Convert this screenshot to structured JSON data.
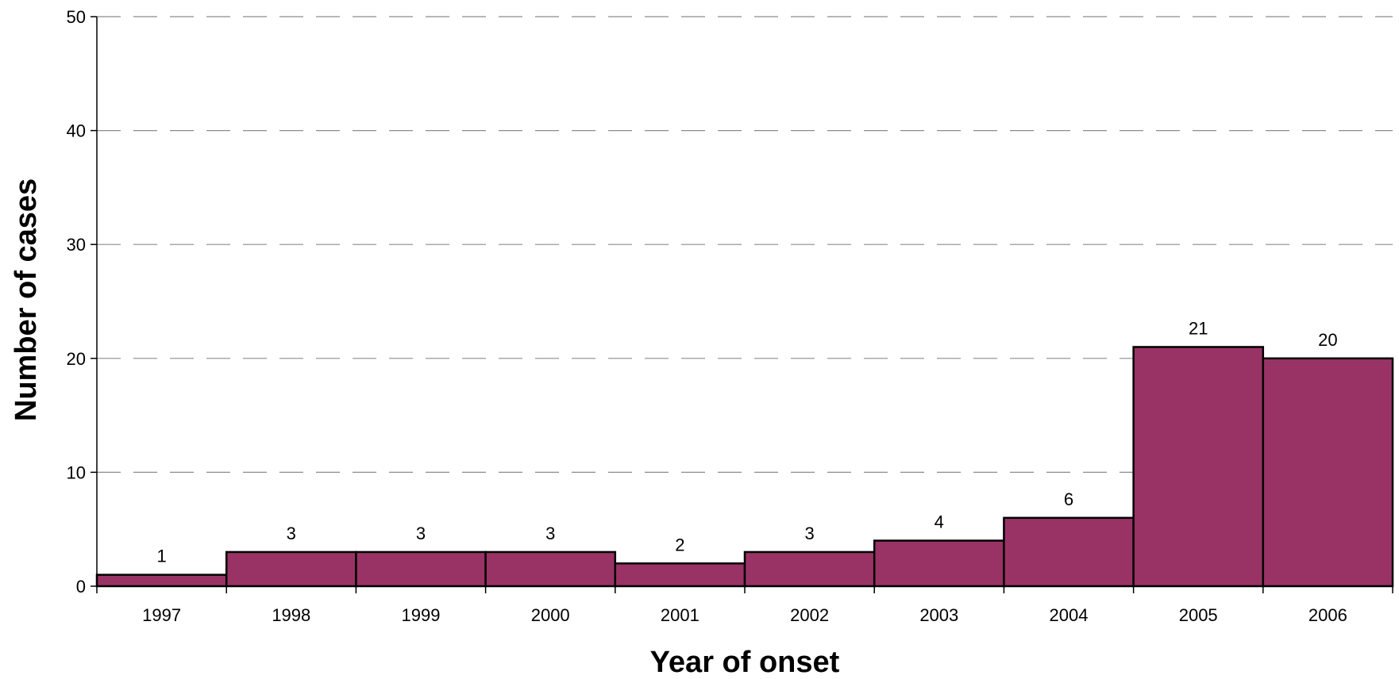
{
  "chart_data": {
    "type": "bar",
    "title": "",
    "xlabel": "Year of onset",
    "ylabel": "Number of cases",
    "categories": [
      "1997",
      "1998",
      "1999",
      "2000",
      "2001",
      "2002",
      "2003",
      "2004",
      "2005",
      "2006"
    ],
    "values": [
      1,
      3,
      3,
      3,
      2,
      3,
      4,
      6,
      21,
      20
    ],
    "data_labels": [
      "1",
      "3",
      "3",
      "3",
      "2",
      "3",
      "4",
      "6",
      "21",
      "20"
    ],
    "ylim": [
      0,
      50
    ],
    "yticks": [
      0,
      10,
      20,
      30,
      40,
      50
    ],
    "ytick_labels": [
      "0",
      "10",
      "20",
      "30",
      "40",
      "50"
    ],
    "grid": true,
    "legend": "none",
    "bar_color": "#993366",
    "bar_edge_color": "#000000",
    "gridline_color": "#8c8c8c"
  }
}
